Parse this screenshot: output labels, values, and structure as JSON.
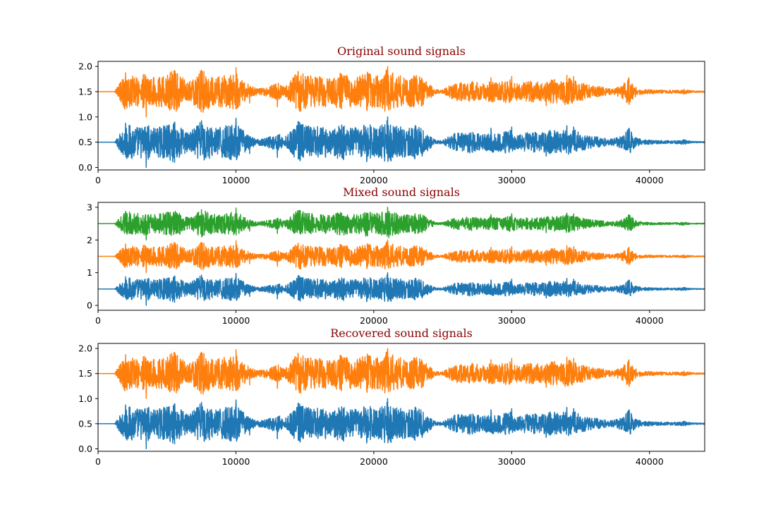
{
  "chart_data": [
    {
      "type": "line",
      "title": "Original sound signals",
      "xlabel": "",
      "ylabel": "",
      "xlim": [
        0,
        44000
      ],
      "ylim": [
        -0.05,
        2.1
      ],
      "xticks": [
        "0",
        "10000",
        "20000",
        "30000",
        "40000"
      ],
      "yticks": [
        "0.0",
        "0.5",
        "1.0",
        "1.5",
        "2.0"
      ],
      "grid": false,
      "series": [
        {
          "color": "#1f77b4",
          "baseline": 0.5,
          "peak_pos": 1.0,
          "peak_neg": 0.0
        },
        {
          "color": "#ff7f0e",
          "baseline": 1.5,
          "peak_pos": 2.0,
          "peak_neg": 1.0
        }
      ]
    },
    {
      "type": "line",
      "title": "Mixed sound signals",
      "xlabel": "",
      "ylabel": "",
      "xlim": [
        0,
        44000
      ],
      "ylim": [
        -0.15,
        3.15
      ],
      "xticks": [
        "0",
        "10000",
        "20000",
        "30000",
        "40000"
      ],
      "yticks": [
        "0",
        "1",
        "2",
        "3"
      ],
      "grid": false,
      "series": [
        {
          "color": "#1f77b4",
          "baseline": 0.5,
          "peak_pos": 1.0,
          "peak_neg": 0.0
        },
        {
          "color": "#ff7f0e",
          "baseline": 1.5,
          "peak_pos": 2.0,
          "peak_neg": 1.0
        },
        {
          "color": "#2ca02c",
          "baseline": 2.5,
          "peak_pos": 3.0,
          "peak_neg": 2.0
        }
      ]
    },
    {
      "type": "line",
      "title": "Recovered sound signals",
      "xlabel": "",
      "ylabel": "",
      "xlim": [
        0,
        44000
      ],
      "ylim": [
        -0.05,
        2.1
      ],
      "xticks": [
        "0",
        "10000",
        "20000",
        "30000",
        "40000"
      ],
      "yticks": [
        "0.0",
        "0.5",
        "1.0",
        "1.5",
        "2.0"
      ],
      "grid": false,
      "series": [
        {
          "color": "#1f77b4",
          "baseline": 0.5,
          "peak_pos": 1.0,
          "peak_neg": 0.0
        },
        {
          "color": "#ff7f0e",
          "baseline": 1.5,
          "peak_pos": 2.0,
          "peak_neg": 1.0
        }
      ]
    }
  ],
  "title_color": "#8b0000"
}
